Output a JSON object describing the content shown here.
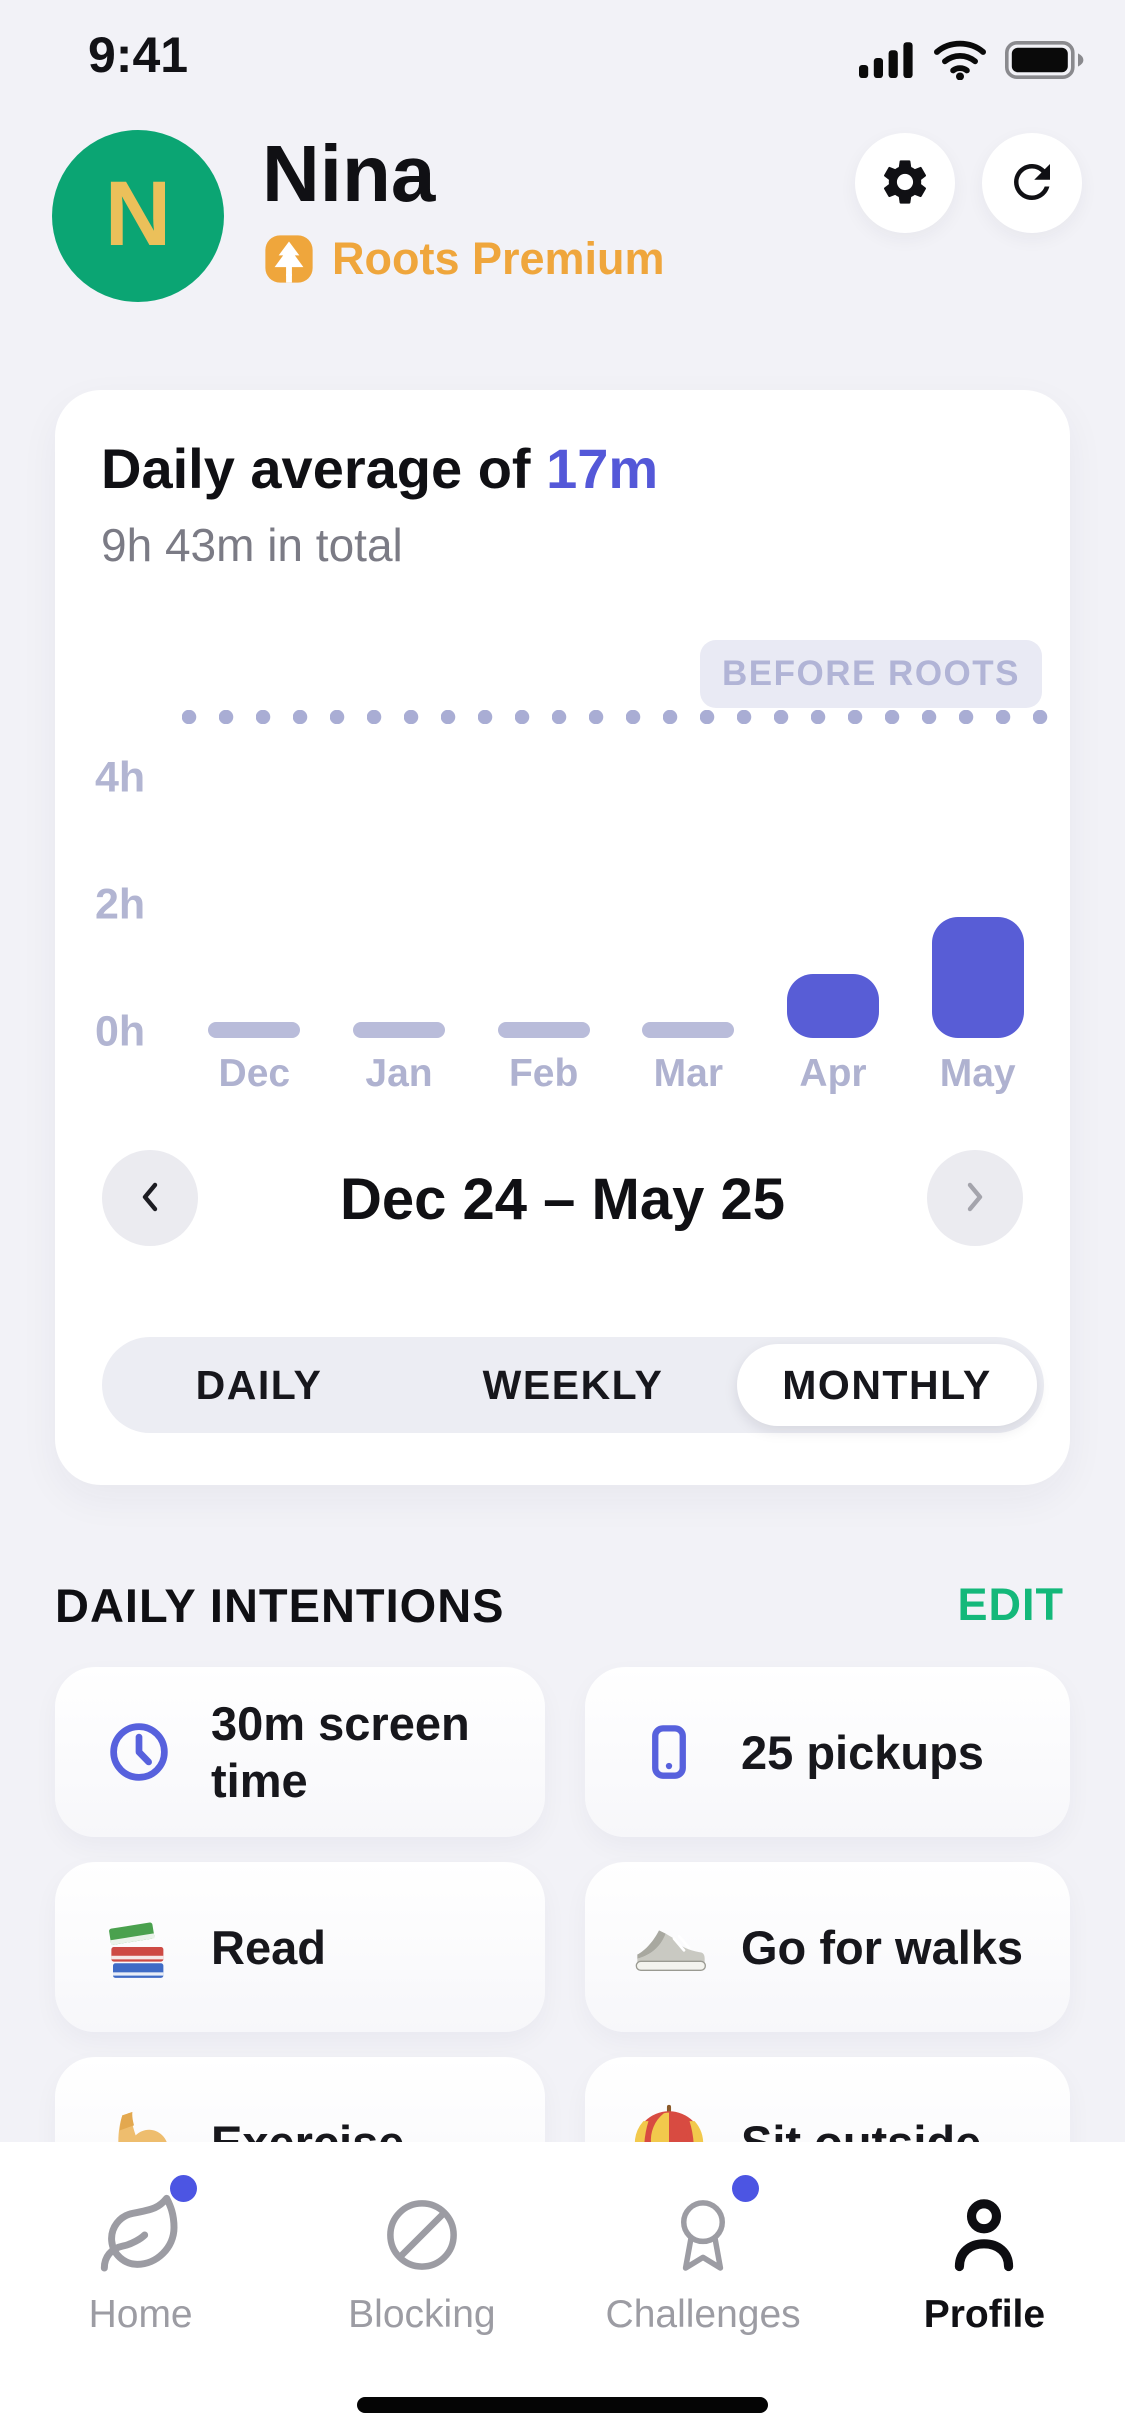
{
  "status_bar": {
    "time": "9:41",
    "icons": [
      "cellular-signal",
      "wifi",
      "battery-full"
    ]
  },
  "header": {
    "avatar_initial": "N",
    "name": "Nina",
    "premium_badge": "Roots Premium",
    "actions": [
      {
        "icon": "gear"
      },
      {
        "icon": "refresh"
      }
    ]
  },
  "usage_card": {
    "title_prefix": "Daily average of ",
    "title_highlight": "17m",
    "subtitle": "9h 43m in total",
    "baseline_badge": "BEFORE ROOTS",
    "chart_data": {
      "type": "bar",
      "categories": [
        "Dec",
        "Jan",
        "Feb",
        "Mar",
        "Apr",
        "May"
      ],
      "values_hours": [
        0.12,
        0.12,
        0.12,
        0.12,
        1.0,
        1.9
      ],
      "muted_bars": [
        true,
        true,
        true,
        true,
        false,
        false
      ],
      "y_ticks": [
        "0h",
        "2h",
        "4h"
      ],
      "y_tick_values": [
        0,
        2,
        4
      ],
      "ylim": [
        0,
        5.5
      ],
      "before_roots_average_hours": 5.05,
      "grid": false,
      "bar_color_active": "#585DD6",
      "bar_color_muted": "#B9BCDA",
      "axis_label_color": "#B2B5D2",
      "month_label_color": "#AFB2D0",
      "baseline_dot_color": "#A9ADD4"
    },
    "period_nav": {
      "prev_icon": "chevron-left",
      "label": "Dec 24 – May 25",
      "next_icon": "chevron-right"
    },
    "range_tabs": {
      "options": [
        "DAILY",
        "WEEKLY",
        "MONTHLY"
      ],
      "selected": "MONTHLY"
    }
  },
  "intentions": {
    "heading": "DAILY INTENTIONS",
    "edit_label": "EDIT",
    "items": [
      {
        "icon": "clock",
        "label": "30m screen time"
      },
      {
        "icon": "phone",
        "label": "25 pickups"
      },
      {
        "icon": "books",
        "label": "Read"
      },
      {
        "icon": "sneaker",
        "label": "Go for walks"
      },
      {
        "icon": "bicep",
        "label": "Exercise"
      },
      {
        "icon": "umbrella",
        "label": "Sit outside"
      }
    ]
  },
  "tab_bar": {
    "items": [
      {
        "icon": "leaf",
        "label": "Home",
        "active": false,
        "notification_dot": true
      },
      {
        "icon": "blocked-circle",
        "label": "Blocking",
        "active": false,
        "notification_dot": false
      },
      {
        "icon": "award",
        "label": "Challenges",
        "active": false,
        "notification_dot": true
      },
      {
        "icon": "person",
        "label": "Profile",
        "active": true,
        "notification_dot": false
      }
    ]
  },
  "colors": {
    "accent_indigo": "#585DD6",
    "premium_orange": "#EFA63C",
    "avatar_green": "#0BA573",
    "avatar_letter_gold": "#EBC05A",
    "edit_green": "#14B87A",
    "notification_dot_blue": "#4C55E3",
    "page_background": "#F2F2F7"
  }
}
